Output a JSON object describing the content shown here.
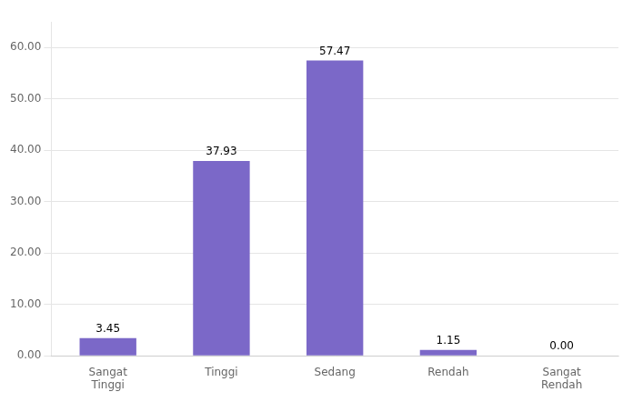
{
  "chart_data": {
    "type": "bar",
    "categories": [
      "Sangat\nTinggi",
      "Tinggi",
      "Sedang",
      "Rendah",
      "Sangat\nRendah"
    ],
    "values": [
      3.45,
      37.93,
      57.47,
      1.15,
      0.0
    ],
    "value_labels": [
      "3.45",
      "37.93",
      "57.47",
      "1.15",
      "0.00"
    ],
    "data_labels": true,
    "color": "#7B68C8",
    "ylim": [
      0,
      65
    ],
    "yticks": [
      {
        "value": 0,
        "label": "0.00"
      },
      {
        "value": 10,
        "label": "10.00"
      },
      {
        "value": 20,
        "label": "20.00"
      },
      {
        "value": 30,
        "label": "30.00"
      },
      {
        "value": 40,
        "label": "40.00"
      },
      {
        "value": 50,
        "label": "50.00"
      },
      {
        "value": 60,
        "label": "60.00"
      }
    ],
    "grid": true
  }
}
